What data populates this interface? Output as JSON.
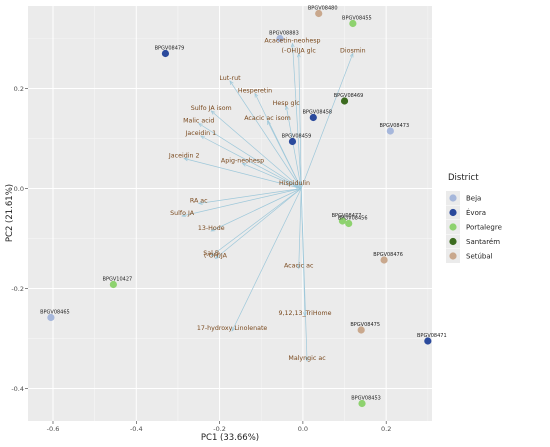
{
  "chart_data": {
    "type": "scatter",
    "subtype": "pca-biplot",
    "xlabel": "PC1 (33.66%)",
    "ylabel": "PC2 (21.61%)",
    "xlim": [
      -0.66,
      0.31
    ],
    "ylim": [
      -0.465,
      0.365
    ],
    "xticks": [
      -0.6,
      -0.4,
      -0.2,
      0.0,
      0.2
    ],
    "yticks": [
      -0.4,
      -0.2,
      0.0,
      0.2
    ],
    "xtick_labels": [
      "-0.6",
      "-0.4",
      "-0.2",
      "0.0",
      "0.2"
    ],
    "ytick_labels": [
      "-0.4",
      "-0.2",
      "0.0",
      "0.2"
    ],
    "grid": true,
    "background": "#ebebeb",
    "arrow_color": "#9ec8da",
    "legend": {
      "title": "District",
      "placement": "right",
      "entries": [
        {
          "name": "Beja",
          "color": "#a6b7db"
        },
        {
          "name": "Évora",
          "color": "#2b4a9c"
        },
        {
          "name": "Portalegre",
          "color": "#8ed26f"
        },
        {
          "name": "Santarém",
          "color": "#3c6b1f"
        },
        {
          "name": "Setúbal",
          "color": "#c9a88d"
        }
      ]
    },
    "origin": [
      -0.004,
      0.0
    ],
    "points": [
      {
        "label": "BPGV08480",
        "district": "Setúbal",
        "x": 0.038,
        "y": 0.35
      },
      {
        "label": "BPGV08455",
        "district": "Portalegre",
        "x": 0.12,
        "y": 0.33
      },
      {
        "label": "BPGV08883",
        "district": "Beja",
        "x": -0.055,
        "y": 0.3
      },
      {
        "label": "BPGV08479",
        "district": "Évora",
        "x": -0.33,
        "y": 0.27
      },
      {
        "label": "BPGV08469",
        "district": "Santarém",
        "x": 0.1,
        "y": 0.175
      },
      {
        "label": "BPGV08458",
        "district": "Évora",
        "x": 0.025,
        "y": 0.142
      },
      {
        "label": "BPGV08473",
        "district": "Beja",
        "x": 0.21,
        "y": 0.115
      },
      {
        "label": "BPGV08459",
        "district": "Évora",
        "x": -0.025,
        "y": 0.094
      },
      {
        "label": "BPGV08477",
        "district": "Portalegre",
        "x": 0.095,
        "y": -0.065
      },
      {
        "label": "BPGV08456",
        "district": "Portalegre",
        "x": 0.11,
        "y": -0.07
      },
      {
        "label": "BPGV08476",
        "district": "Setúbal",
        "x": 0.195,
        "y": -0.143
      },
      {
        "label": "BPGV10427",
        "district": "Portalegre",
        "x": -0.455,
        "y": -0.192
      },
      {
        "label": "BPGV08465",
        "district": "Beja",
        "x": -0.605,
        "y": -0.258
      },
      {
        "label": "BPGV08475",
        "district": "Setúbal",
        "x": 0.14,
        "y": -0.283
      },
      {
        "label": "BPGV08471",
        "district": "Évora",
        "x": 0.3,
        "y": -0.305
      },
      {
        "label": "BPGV08453",
        "district": "Portalegre",
        "x": 0.142,
        "y": -0.43
      }
    ],
    "variables": [
      {
        "label": "Acacetin-neohesp",
        "x": -0.025,
        "y": 0.29
      },
      {
        "label": "(-OH)JA glc",
        "x": -0.01,
        "y": 0.27
      },
      {
        "label": "Diosmin",
        "x": 0.12,
        "y": 0.27
      },
      {
        "label": "Lut-rut",
        "x": -0.175,
        "y": 0.215
      },
      {
        "label": "Hesperetin",
        "x": -0.115,
        "y": 0.19
      },
      {
        "label": "Hesp glc",
        "x": -0.04,
        "y": 0.165
      },
      {
        "label": "Sulfo JA isom",
        "x": -0.22,
        "y": 0.155
      },
      {
        "label": "Malic acid",
        "x": -0.25,
        "y": 0.13
      },
      {
        "label": "Acacic ac isom",
        "x": -0.085,
        "y": 0.135
      },
      {
        "label": "Jaceidin 1",
        "x": -0.245,
        "y": 0.105
      },
      {
        "label": "Jaceidin 2",
        "x": -0.285,
        "y": 0.06
      },
      {
        "label": "Apig-neohesp",
        "x": -0.145,
        "y": 0.05
      },
      {
        "label": "Hispidulin",
        "x": -0.02,
        "y": 0.005
      },
      {
        "label": "RA ac",
        "x": -0.25,
        "y": -0.03
      },
      {
        "label": "Sulfo JA",
        "x": -0.29,
        "y": -0.055
      },
      {
        "label": "13-Hode",
        "x": -0.22,
        "y": -0.085
      },
      {
        "label": "Sal B",
        "x": -0.22,
        "y": -0.135
      },
      {
        "label": "(-OH)JA",
        "x": -0.21,
        "y": -0.14
      },
      {
        "label": "Acacic ac",
        "x": -0.01,
        "y": -0.16
      },
      {
        "label": "9,12,13_TriHome",
        "x": 0.005,
        "y": -0.255
      },
      {
        "label": "17-hydroxy Linolenate",
        "x": -0.17,
        "y": -0.285
      },
      {
        "label": "Malyngic ac",
        "x": 0.01,
        "y": -0.345
      }
    ]
  }
}
